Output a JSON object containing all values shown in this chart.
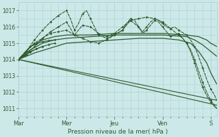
{
  "bg_color": "#cce8e8",
  "grid_color": "#b0d0d0",
  "line_color": "#2d5a2d",
  "xlabel": "Pression niveau de la mer( hPa )",
  "tick_color": "#2d5a2d",
  "ylim": [
    1010.5,
    1017.5
  ],
  "yticks": [
    1011,
    1012,
    1013,
    1014,
    1015,
    1016,
    1017
  ],
  "x_day_labels": [
    "Mar",
    "Mer",
    "Jeu",
    "Ven",
    "S"
  ],
  "x_day_positions": [
    0,
    24,
    48,
    72,
    96
  ]
}
